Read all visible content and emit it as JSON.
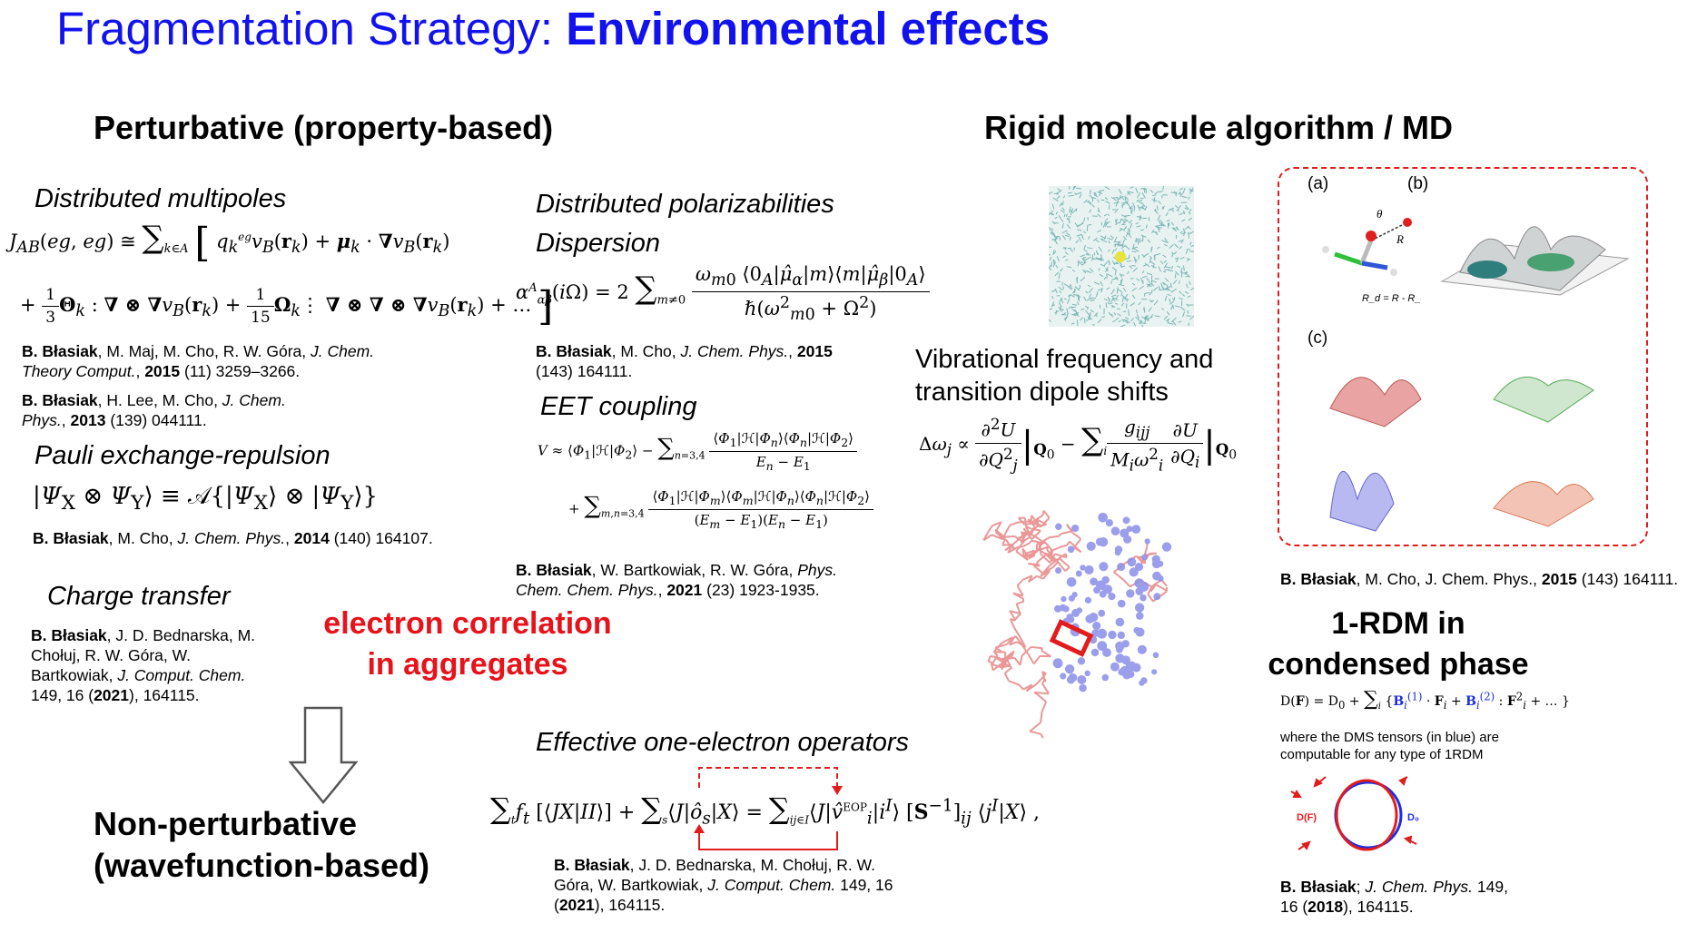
{
  "title": {
    "plain": "Fragmentation Strategy: ",
    "bold": "Environmental effects"
  },
  "perturbative": {
    "heading": "Perturbative (property-based)",
    "multipoles": {
      "label": "Distributed multipoles",
      "ref1": {
        "author": "B. Błasiak",
        "rest": ", M. Maj, M. Cho, R. W. Góra, ",
        "journal": "J. Chem. Theory Comput.",
        "year": "2015",
        "tail": " (11) 3259–3266."
      },
      "ref2": {
        "author": "B. Błasiak",
        "rest": ", H. Lee, M. Cho, ",
        "journal": "J. Chem. Phys.",
        "year": "2013",
        "tail": " (139) 044111."
      }
    },
    "pauli": {
      "label": "Pauli exchange-repulsion",
      "ref": {
        "author": "B. Błasiak",
        "rest": ", M. Cho, ",
        "journal": "J. Chem. Phys.",
        "year": "2014",
        "tail": " (140) 164107."
      }
    },
    "charge_transfer": {
      "label": "Charge transfer",
      "ref": {
        "author": "B. Błasiak",
        "rest": ", J. D. Bednarska, M. Chołuj, R. W. Góra, W. Bartkowiak, ",
        "journal": "J. Comput. Chem.",
        "pre_year": " 149, 16 (",
        "year": "2021",
        "tail": "), 164115."
      }
    },
    "polarizabilities": {
      "label1": "Distributed polarizabilities",
      "label2": "Dispersion",
      "ref": {
        "author": "B. Błasiak",
        "rest": ", M. Cho, ",
        "journal": "J. Chem. Phys.",
        "year": "2015",
        "tail": " (143) 164111."
      }
    },
    "eet": {
      "label": "EET coupling",
      "ref": {
        "author": "B. Błasiak",
        "rest": ", W. Bartkowiak, R. W. Góra, ",
        "journal": "Phys. Chem. Chem. Phys.",
        "year": "2021",
        "tail": " (23) 1923-1935."
      }
    },
    "eop": {
      "label": "Effective one-electron operators",
      "ref": {
        "author": "B. Błasiak",
        "rest": ", J. D. Bednarska, M. Chołuj, R. W. Góra, W. Bartkowiak, ",
        "journal": "J. Comput. Chem.",
        "pre_year": " 149, 16 (",
        "year": "2021",
        "tail": "), 164115."
      }
    }
  },
  "correlation": {
    "line1": "electron correlation",
    "line2": "in aggregates"
  },
  "non_perturbative": {
    "line1": "Non-perturbative",
    "line2": "(wavefunction-based)"
  },
  "rigid": {
    "heading": "Rigid molecule algorithm / MD",
    "vib_line1": "Vibrational frequency and",
    "vib_line2": "transition dipole shifts",
    "figure_labels": {
      "a": "(a)",
      "b": "(b)",
      "c": "(c)",
      "rd": "R_d = R - R_eq",
      "theta": "θ",
      "R": "R"
    },
    "ref": {
      "author": "B. Błasiak",
      "rest": ", M. Cho, J. Chem. Phys., ",
      "year": "2015",
      "tail": " (143) 164111."
    }
  },
  "rdm": {
    "heading1": "1-RDM in",
    "heading2": "condensed phase",
    "note": "where the DMS tensors (in blue) are computable for any type of 1RDM",
    "df_label": "D(F)",
    "d0_label": "D₀",
    "ref": {
      "author": "B. Błasiak",
      "rest": "; ",
      "journal": "J. Chem. Phys.",
      "pre_year": " 149, 16 (",
      "year": "2018",
      "tail": "), 164115."
    }
  }
}
